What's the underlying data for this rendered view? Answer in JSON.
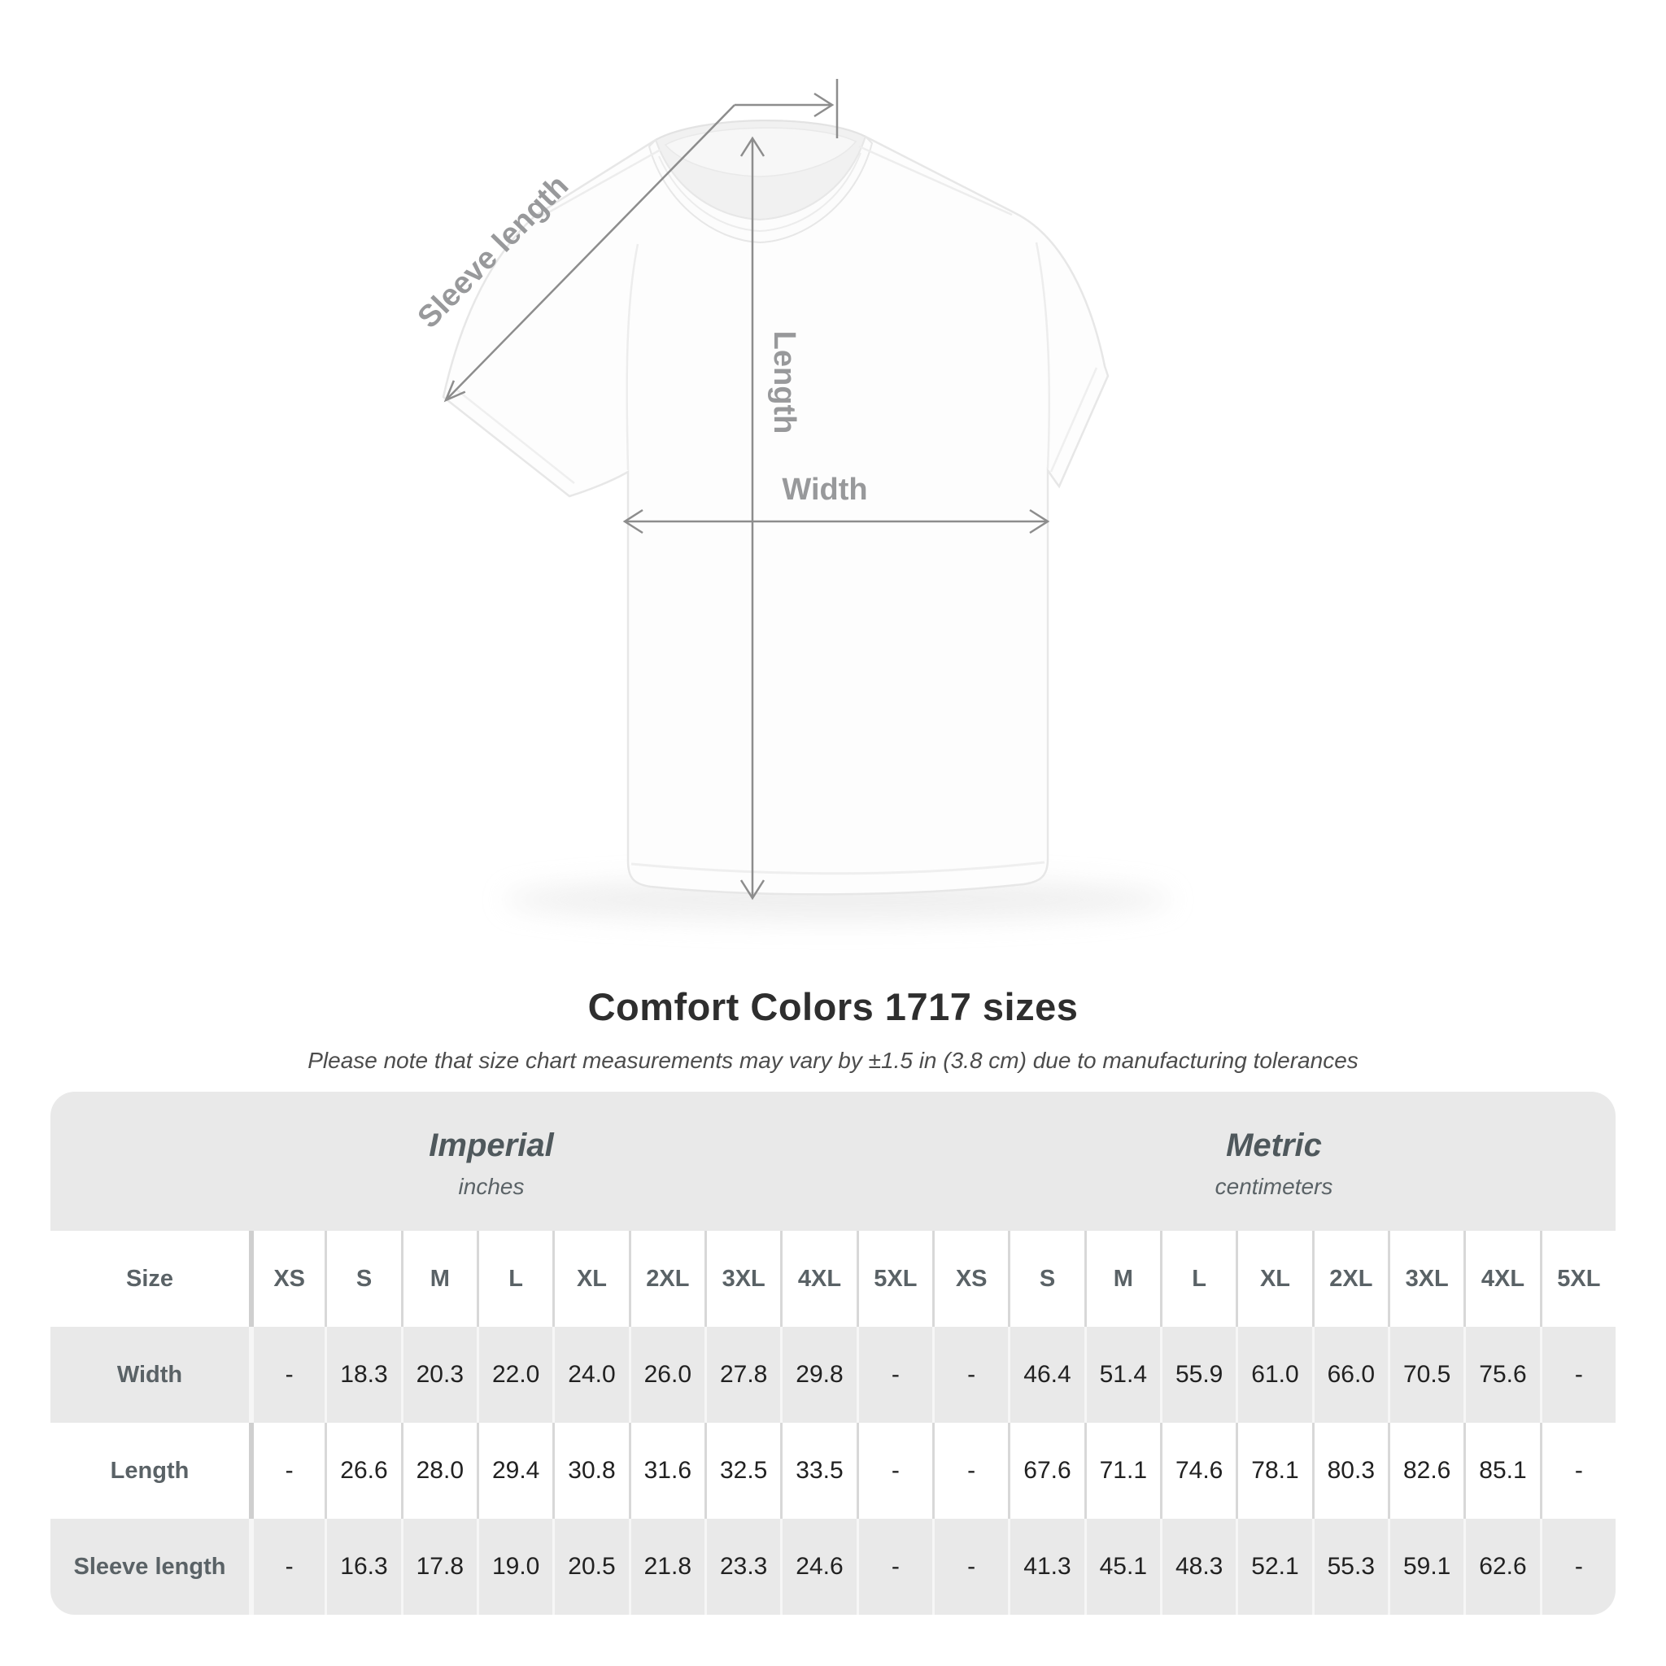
{
  "diagram": {
    "labels": {
      "sleeve_length": "Sleeve length",
      "length": "Length",
      "width": "Width"
    }
  },
  "title": "Comfort Colors 1717 sizes",
  "subtitle": "Please note that size chart measurements may vary by ±1.5 in (3.8 cm) due to manufacturing tolerances",
  "table": {
    "size_header": "Size",
    "groups": [
      {
        "label": "Imperial",
        "sublabel": "inches"
      },
      {
        "label": "Metric",
        "sublabel": "centimeters"
      }
    ],
    "sizes": [
      "XS",
      "S",
      "M",
      "L",
      "XL",
      "2XL",
      "3XL",
      "4XL",
      "5XL"
    ],
    "rows": [
      {
        "label": "Width",
        "imperial": [
          "-",
          "18.3",
          "20.3",
          "22.0",
          "24.0",
          "26.0",
          "27.8",
          "29.8",
          "-"
        ],
        "metric": [
          "-",
          "46.4",
          "51.4",
          "55.9",
          "61.0",
          "66.0",
          "70.5",
          "75.6",
          "-"
        ]
      },
      {
        "label": "Length",
        "imperial": [
          "-",
          "26.6",
          "28.0",
          "29.4",
          "30.8",
          "31.6",
          "32.5",
          "33.5",
          "-"
        ],
        "metric": [
          "-",
          "67.6",
          "71.1",
          "74.6",
          "78.1",
          "80.3",
          "82.6",
          "85.1",
          "-"
        ]
      },
      {
        "label": "Sleeve length",
        "imperial": [
          "-",
          "16.3",
          "17.8",
          "19.0",
          "20.5",
          "21.8",
          "23.3",
          "24.6",
          "-"
        ],
        "metric": [
          "-",
          "41.3",
          "45.1",
          "48.3",
          "52.1",
          "55.3",
          "59.1",
          "62.6",
          "-"
        ]
      }
    ]
  },
  "chart_data": {
    "type": "table",
    "title": "Comfort Colors 1717 sizes",
    "note": "Please note that size chart measurements may vary by ±1.5 in (3.8 cm) due to manufacturing tolerances",
    "column_groups": [
      {
        "name": "Imperial",
        "unit": "inches"
      },
      {
        "name": "Metric",
        "unit": "centimeters"
      }
    ],
    "categories": [
      "XS",
      "S",
      "M",
      "L",
      "XL",
      "2XL",
      "3XL",
      "4XL",
      "5XL"
    ],
    "series": [
      {
        "name": "Width (in)",
        "values": [
          null,
          18.3,
          20.3,
          22.0,
          24.0,
          26.0,
          27.8,
          29.8,
          null
        ]
      },
      {
        "name": "Length (in)",
        "values": [
          null,
          26.6,
          28.0,
          29.4,
          30.8,
          31.6,
          32.5,
          33.5,
          null
        ]
      },
      {
        "name": "Sleeve length (in)",
        "values": [
          null,
          16.3,
          17.8,
          19.0,
          20.5,
          21.8,
          23.3,
          24.6,
          null
        ]
      },
      {
        "name": "Width (cm)",
        "values": [
          null,
          46.4,
          51.4,
          55.9,
          61.0,
          66.0,
          70.5,
          75.6,
          null
        ]
      },
      {
        "name": "Length (cm)",
        "values": [
          null,
          67.6,
          71.1,
          74.6,
          78.1,
          80.3,
          82.6,
          85.1,
          null
        ]
      },
      {
        "name": "Sleeve length (cm)",
        "values": [
          null,
          41.3,
          45.1,
          48.3,
          52.1,
          55.3,
          59.1,
          62.6,
          null
        ]
      }
    ],
    "measurement_diagram_labels": [
      "Sleeve length",
      "Length",
      "Width"
    ]
  }
}
